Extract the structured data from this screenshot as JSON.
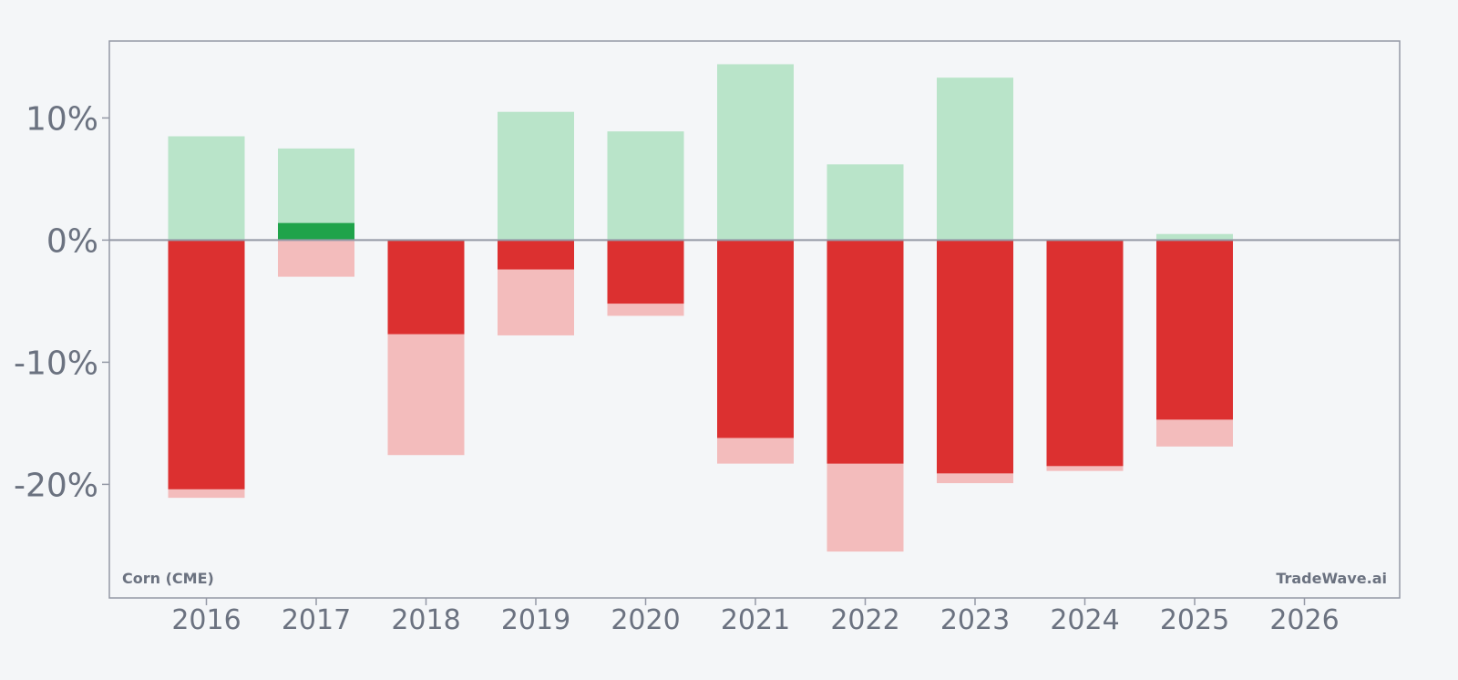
{
  "chart_data": {
    "type": "bar",
    "title": "",
    "xlabel": "",
    "ylabel": "",
    "categories": [
      "2016",
      "2017",
      "2018",
      "2019",
      "2020",
      "2021",
      "2022",
      "2023",
      "2024",
      "2025",
      "2026"
    ],
    "y_ticks": [
      "-20%",
      "-10%",
      "0%",
      "10%"
    ],
    "ylim": [
      -29.3,
      16.3
    ],
    "grid": false,
    "legend": "none",
    "series": [
      {
        "values": [
          8.5,
          7.5,
          0,
          10.5,
          8.9,
          14.4,
          6.2,
          13.3,
          0,
          0.5,
          null
        ],
        "color": "#b9e4c9"
      },
      {
        "values": [
          0,
          1.4,
          0,
          0,
          0,
          0,
          0,
          0,
          0,
          0,
          null
        ],
        "color": "#1fa34a"
      },
      {
        "values": [
          -20.4,
          0,
          -7.7,
          -2.4,
          -5.2,
          -16.2,
          -18.3,
          -19.1,
          -18.5,
          -14.7,
          null
        ],
        "color": "#dc3030"
      },
      {
        "values": [
          -21.1,
          -3.0,
          -17.6,
          -7.8,
          -6.2,
          -18.3,
          -25.5,
          -19.9,
          -18.9,
          -16.9,
          null
        ],
        "color": "#f3bcbc"
      }
    ],
    "annotations": {
      "bottom_left": "Corn (CME)",
      "bottom_right": "TradeWave.ai"
    },
    "colors": {
      "background": "#f4f6f8",
      "axis": "#9499a6",
      "text": "#6b7280"
    }
  }
}
